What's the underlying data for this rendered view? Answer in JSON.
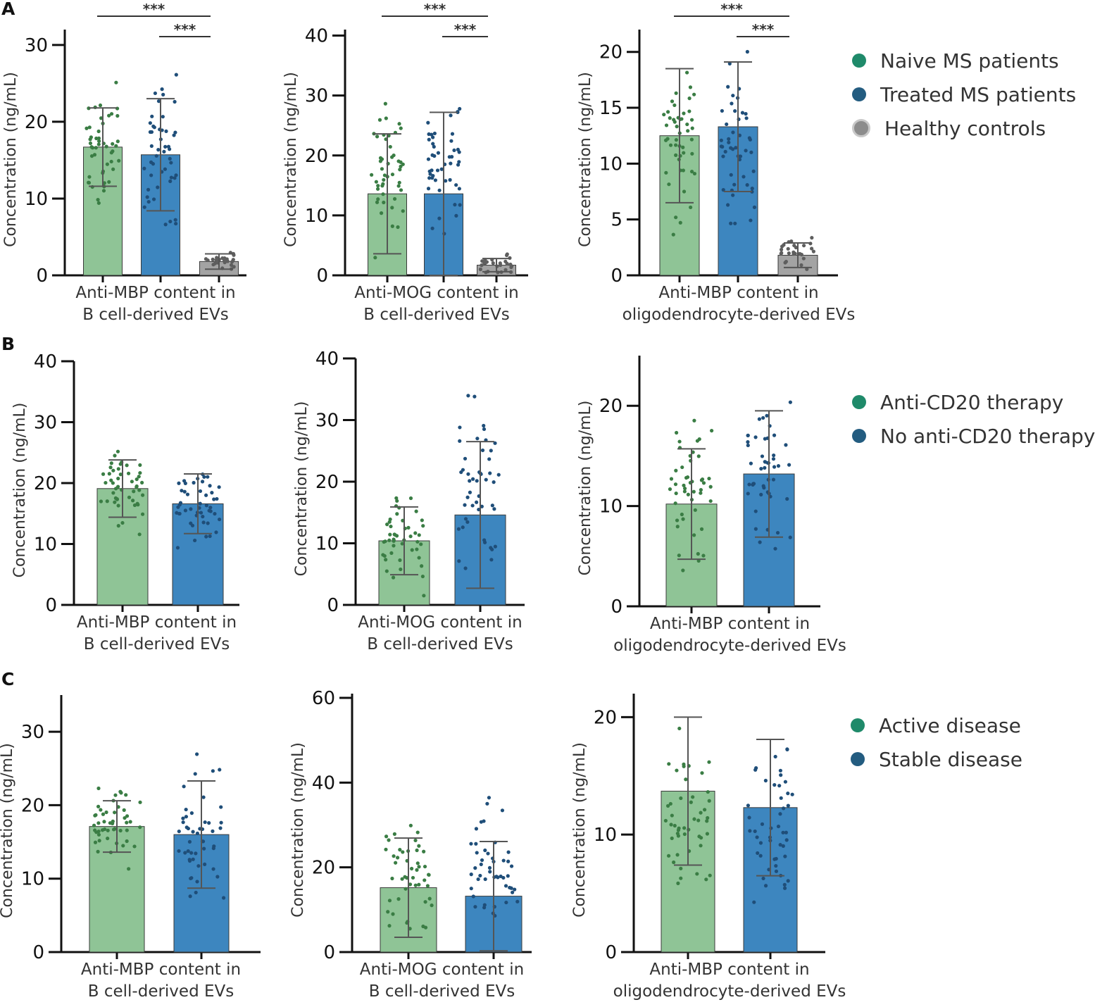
{
  "panels": [
    {
      "letter": "A"
    },
    {
      "letter": "B"
    },
    {
      "letter": "C"
    }
  ],
  "legends": [
    {
      "items": [
        {
          "label": "Naive MS patients",
          "color": "#1f8a6a"
        },
        {
          "label": "Treated MS patients",
          "color": "#235c80"
        },
        {
          "label": "Healthy controls",
          "color": "#8c8c8c"
        }
      ]
    },
    {
      "items": [
        {
          "label": "Anti-CD20 therapy",
          "color": "#1f8a6a"
        },
        {
          "label": "No anti-CD20 therapy",
          "color": "#235c80"
        }
      ]
    },
    {
      "items": [
        {
          "label": "Active disease",
          "color": "#1f8a6a"
        },
        {
          "label": "Stable disease",
          "color": "#235c80"
        }
      ]
    }
  ],
  "styles": {
    "bar_fills": [
      "#8fc496",
      "#3d86bf",
      "#a3a3a3"
    ],
    "dot_colors": [
      "#3a7d44",
      "#1f4e79",
      "#5e5e5e"
    ],
    "errorbar_color": "#555555",
    "axis_color": "#111111"
  },
  "chart_data": [
    {
      "type": "bar",
      "panel": "A",
      "xlabel": [
        "Anti-MBP content in",
        "B cell-derived EVs"
      ],
      "ylabel": "Concentration (ng/mL)",
      "ylim": [
        0,
        32
      ],
      "yticks": [
        0,
        10,
        20,
        30
      ],
      "categories": [
        "Naive MS patients",
        "Treated MS patients",
        "Healthy controls"
      ],
      "values": [
        16.7,
        15.7,
        1.8
      ],
      "errors": [
        5.1,
        7.3,
        1.0
      ],
      "significance": [
        {
          "from": 0,
          "to": 2,
          "label": "***"
        },
        {
          "from": 1,
          "to": 2,
          "label": "***"
        }
      ]
    },
    {
      "type": "bar",
      "panel": "A",
      "xlabel": [
        "Anti-MOG content in",
        "B cell-derived EVs"
      ],
      "ylabel": "Concentration (ng/mL)",
      "ylim": [
        0,
        41
      ],
      "yticks": [
        0,
        10,
        20,
        30,
        40
      ],
      "categories": [
        "Naive MS patients",
        "Treated MS patients",
        "Healthy controls"
      ],
      "values": [
        13.6,
        13.6,
        1.7
      ],
      "errors": [
        10,
        13.6,
        1.1
      ],
      "significance": [
        {
          "from": 0,
          "to": 2,
          "label": "***"
        },
        {
          "from": 1,
          "to": 2,
          "label": "***"
        }
      ]
    },
    {
      "type": "bar",
      "panel": "A",
      "xlabel": [
        "Anti-MBP content in",
        "oligodendrocyte-derived EVs"
      ],
      "ylabel": "Concentration (ng/mL)",
      "ylim": [
        0,
        22
      ],
      "yticks": [
        0,
        5,
        10,
        15,
        20
      ],
      "categories": [
        "Naive MS patients",
        "Treated MS patients",
        "Healthy controls"
      ],
      "values": [
        12.5,
        13.3,
        1.8
      ],
      "errors": [
        6,
        5.8,
        1.1
      ],
      "significance": [
        {
          "from": 0,
          "to": 2,
          "label": "***"
        },
        {
          "from": 1,
          "to": 2,
          "label": "***"
        }
      ]
    },
    {
      "type": "bar",
      "panel": "B",
      "xlabel": [
        "Anti-MBP content in",
        "B cell-derived EVs"
      ],
      "ylabel": "Concentration (ng/mL)",
      "ylim": [
        0,
        40
      ],
      "yticks": [
        0,
        10,
        20,
        30,
        40
      ],
      "categories": [
        "Anti-CD20 therapy",
        "No anti-CD20 therapy"
      ],
      "values": [
        19.1,
        16.6
      ],
      "errors": [
        4.7,
        4.9
      ],
      "significance": []
    },
    {
      "type": "bar",
      "panel": "B",
      "xlabel": [
        "Anti-MOG content in",
        "B cell-derived EVs"
      ],
      "ylabel": "Concentration (ng/mL)",
      "ylim": [
        0,
        40
      ],
      "yticks": [
        0,
        10,
        20,
        30,
        40
      ],
      "categories": [
        "Anti-CD20 therapy",
        "No anti-CD20 therapy"
      ],
      "values": [
        10.4,
        14.6
      ],
      "errors": [
        5.5,
        11.9
      ],
      "significance": []
    },
    {
      "type": "bar",
      "panel": "B",
      "xlabel": [
        "Anti-MBP content in",
        "oligodendrocyte-derived EVs"
      ],
      "ylabel": "Concentration (ng/mL)",
      "ylim": [
        0,
        25
      ],
      "yticks": [
        0,
        10,
        20
      ],
      "categories": [
        "Anti-CD20 therapy",
        "No anti-CD20 therapy"
      ],
      "values": [
        10.2,
        13.2
      ],
      "errors": [
        5.5,
        6.3
      ],
      "significance": []
    },
    {
      "type": "bar",
      "panel": "C",
      "xlabel": [
        "Anti-MBP content in",
        "B cell-derived EVs"
      ],
      "ylabel": "Concentration (ng/mL)",
      "ylim": [
        0,
        35
      ],
      "yticks": [
        0,
        10,
        20,
        30
      ],
      "categories": [
        "Active disease",
        "Stable disease"
      ],
      "values": [
        17.1,
        16
      ],
      "errors": [
        3.5,
        7.3
      ],
      "significance": []
    },
    {
      "type": "bar",
      "panel": "C",
      "xlabel": [
        "Anti-MOG content in",
        "B cell-derived EVs"
      ],
      "ylabel": "Concentration (ng/mL)",
      "ylim": [
        0,
        61
      ],
      "yticks": [
        0,
        20,
        40,
        60
      ],
      "categories": [
        "Active disease",
        "Stable disease"
      ],
      "values": [
        15.2,
        13.2
      ],
      "errors": [
        11.7,
        12.9
      ],
      "significance": []
    },
    {
      "type": "bar",
      "panel": "C",
      "xlabel": [
        "Anti-MBP content in",
        "oligodendrocyte-derived EVs"
      ],
      "ylabel": "Concentration (ng/mL)",
      "ylim": [
        0,
        22
      ],
      "yticks": [
        0,
        10,
        20
      ],
      "categories": [
        "Active disease",
        "Stable disease"
      ],
      "values": [
        13.7,
        12.3
      ],
      "errors": [
        6.3,
        5.8
      ],
      "significance": []
    }
  ]
}
